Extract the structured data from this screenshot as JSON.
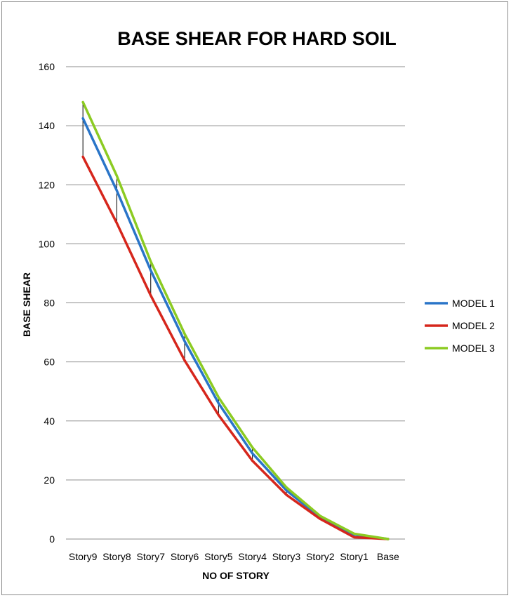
{
  "chart_data": {
    "type": "line",
    "title": "BASE SHEAR FOR HARD SOIL",
    "xlabel": "NO OF STORY",
    "ylabel": "BASE SHEAR",
    "categories": [
      "Story9",
      "Story8",
      "Story7",
      "Story6",
      "Story5",
      "Story4",
      "Story3",
      "Story2",
      "Story1",
      "Base"
    ],
    "ylim": [
      0,
      160
    ],
    "yticks": [
      0,
      20,
      40,
      60,
      80,
      100,
      120,
      140,
      160
    ],
    "grid": true,
    "legend_position": "right",
    "series": [
      {
        "name": "MODEL 1",
        "color": "#2a75c8",
        "values": [
          142.5,
          118,
          91,
          67,
          46,
          29,
          16.5,
          7.3,
          1.5,
          0
        ]
      },
      {
        "name": "MODEL 2",
        "color": "#d6261c",
        "values": [
          129.5,
          107,
          82.5,
          60.5,
          42,
          26.5,
          15,
          6.8,
          0.6,
          0
        ]
      },
      {
        "name": "MODEL 3",
        "color": "#8ccb22",
        "values": [
          148,
          123,
          94,
          69.5,
          48,
          31,
          17.5,
          7.8,
          1.8,
          0
        ]
      }
    ],
    "high_low_lines": true
  }
}
